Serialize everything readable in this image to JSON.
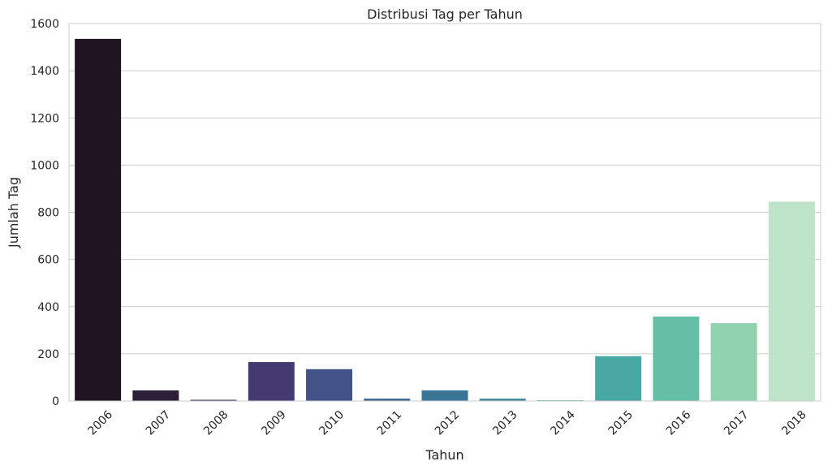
{
  "chart_data": {
    "type": "bar",
    "title": "Distribusi Tag per Tahun",
    "xlabel": "Tahun",
    "ylabel": "Jumlah Tag",
    "categories": [
      "2006",
      "2007",
      "2008",
      "2009",
      "2010",
      "2011",
      "2012",
      "2013",
      "2014",
      "2015",
      "2016",
      "2017",
      "2018"
    ],
    "values": [
      1535,
      45,
      5,
      165,
      135,
      10,
      45,
      10,
      3,
      190,
      358,
      330,
      845
    ],
    "colors": [
      "#1f141f",
      "#2e1f38",
      "#3a2b55",
      "#443a70",
      "#44528a",
      "#3e6594",
      "#3a7597",
      "#3a8999",
      "#3c9c9c",
      "#4aa8a4",
      "#66bea6",
      "#90d1b0",
      "#bde3c8"
    ],
    "ylim": [
      0,
      1600
    ],
    "yticks": [
      0,
      200,
      400,
      600,
      800,
      1000,
      1200,
      1400,
      1600
    ],
    "grid": true,
    "grid_axis": "y"
  }
}
